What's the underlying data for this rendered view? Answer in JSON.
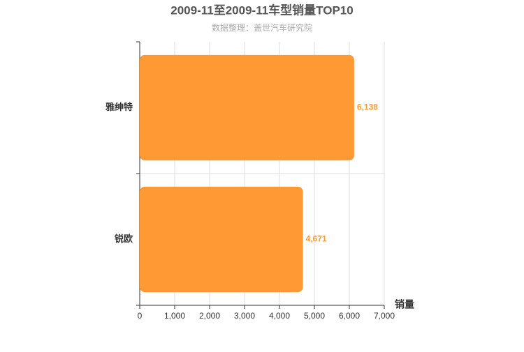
{
  "chart_data": {
    "type": "bar",
    "orientation": "horizontal",
    "title": "2009-11至2009-11车型销量TOP10",
    "subtitle": "数据整理：盖世汽车研究院",
    "x_label": "销量",
    "categories": [
      "雅绅特",
      "锐欧"
    ],
    "values": [
      6138,
      4671
    ],
    "value_labels": [
      "6,138",
      "4,671"
    ],
    "color": "#ff9933",
    "xlim": [
      0,
      7000
    ],
    "xticks": [
      0,
      {
        "value": 1000,
        "label": "1,000"
      },
      {
        "value": 2000,
        "label": "2,000"
      },
      {
        "value": 3000,
        "label": "3,000"
      },
      {
        "value": 4000,
        "label": "4,000"
      },
      {
        "value": 5000,
        "label": "5,000"
      },
      {
        "value": 6000,
        "label": "6,000"
      },
      {
        "value": 7000,
        "label": "7,000"
      }
    ],
    "grid": true
  }
}
